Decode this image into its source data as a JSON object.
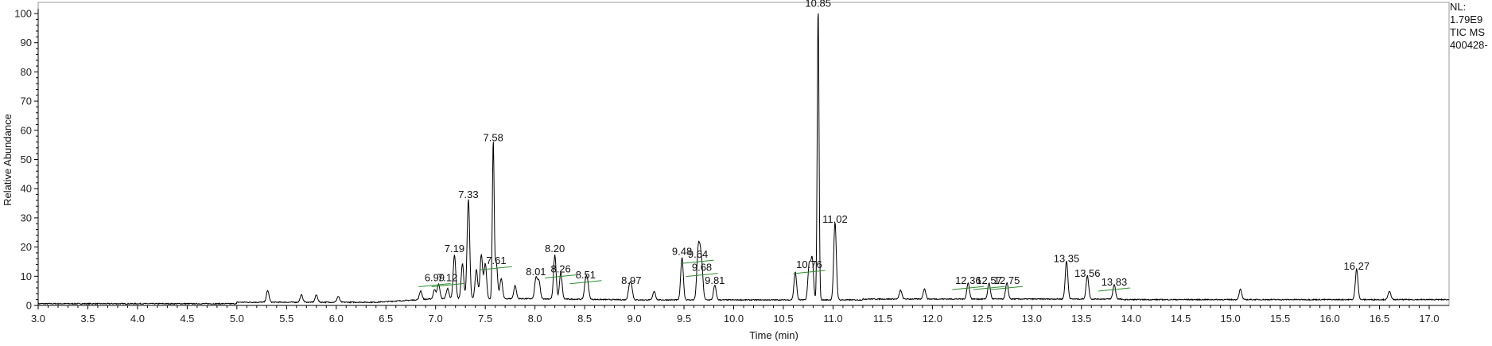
{
  "chart_data": {
    "type": "line",
    "xlabel": "Time (min)",
    "ylabel": "Relative Abundance",
    "xlim": [
      3.0,
      17.2
    ],
    "ylim": [
      0,
      100
    ],
    "x_ticks": [
      "3.0",
      "3.5",
      "4.0",
      "4.5",
      "5.0",
      "5.5",
      "6.0",
      "6.5",
      "7.0",
      "7.5",
      "8.0",
      "8.5",
      "9.0",
      "9.5",
      "10.0",
      "10.5",
      "11.0",
      "11.5",
      "12.0",
      "12.5",
      "13.0",
      "13.5",
      "14.0",
      "14.5",
      "15.0",
      "15.5",
      "16.0",
      "16.5",
      "17.0"
    ],
    "y_ticks": [
      "0",
      "10",
      "20",
      "30",
      "40",
      "50",
      "60",
      "70",
      "80",
      "90",
      "100"
    ],
    "info": [
      "NL:",
      "1.79E9",
      "TIC  MS",
      "400428-"
    ],
    "colors": {
      "trace": "#000000",
      "axis": "#000000",
      "integration_mark": "#2e8b2e"
    },
    "peaks": [
      {
        "rt": 6.99,
        "label": "6.99",
        "height": 3.2,
        "label_y": 7.5,
        "marked": true
      },
      {
        "rt": 7.12,
        "label": "7.12",
        "height": 3.5,
        "label_y": 7.5,
        "marked": true
      },
      {
        "rt": 7.19,
        "label": "7.19",
        "height": 15.0,
        "label_y": 17.5,
        "marked": false
      },
      {
        "rt": 7.33,
        "label": "7.33",
        "height": 34.0,
        "label_y": 36.0,
        "marked": false
      },
      {
        "rt": 7.58,
        "label": "7.58",
        "height": 53.5,
        "label_y": 55.5,
        "marked": false
      },
      {
        "rt": 7.61,
        "label": "7.61",
        "height": 12.5,
        "label_y": 13.3,
        "marked": true
      },
      {
        "rt": 8.01,
        "label": "8.01",
        "height": 7.0,
        "label_y": 9.5,
        "marked": false
      },
      {
        "rt": 8.2,
        "label": "8.20",
        "height": 15.0,
        "label_y": 17.5,
        "marked": false
      },
      {
        "rt": 8.26,
        "label": "8.26",
        "height": 9.0,
        "label_y": 10.5,
        "marked": true
      },
      {
        "rt": 8.51,
        "label": "8.51",
        "height": 6.0,
        "label_y": 8.5,
        "marked": true
      },
      {
        "rt": 8.97,
        "label": "8.97",
        "height": 4.5,
        "label_y": 6.5,
        "marked": false
      },
      {
        "rt": 9.48,
        "label": "9.48",
        "height": 14.5,
        "label_y": 16.5,
        "marked": false
      },
      {
        "rt": 9.64,
        "label": "9.64",
        "height": 14.0,
        "label_y": 15.5,
        "marked": true
      },
      {
        "rt": 9.68,
        "label": "9.68",
        "height": 9.5,
        "label_y": 11.0,
        "marked": true
      },
      {
        "rt": 9.81,
        "label": "9.81",
        "height": 5.0,
        "label_y": 6.5,
        "marked": false
      },
      {
        "rt": 10.76,
        "label": "10.76",
        "height": 12.0,
        "label_y": 12.0,
        "marked": true
      },
      {
        "rt": 10.85,
        "label": "10.85",
        "height": 100.0,
        "label_y": 101.5,
        "marked": false
      },
      {
        "rt": 11.02,
        "label": "11.02",
        "height": 26.5,
        "label_y": 27.5,
        "marked": false
      },
      {
        "rt": 12.36,
        "label": "12.36",
        "height": 5.5,
        "label_y": 6.5,
        "marked": true
      },
      {
        "rt": 12.57,
        "label": "12.57",
        "height": 5.5,
        "label_y": 6.5,
        "marked": true
      },
      {
        "rt": 12.75,
        "label": "12.75",
        "height": 5.5,
        "label_y": 6.5,
        "marked": true
      },
      {
        "rt": 13.35,
        "label": "13.35",
        "height": 13.0,
        "label_y": 14.0,
        "marked": false
      },
      {
        "rt": 13.56,
        "label": "13.56",
        "height": 8.0,
        "label_y": 9.0,
        "marked": false
      },
      {
        "rt": 13.83,
        "label": "13.83",
        "height": 5.0,
        "label_y": 6.0,
        "marked": true
      },
      {
        "rt": 16.27,
        "label": "16.27",
        "height": 10.5,
        "label_y": 11.5,
        "marked": false
      }
    ],
    "minor_peaks": [
      [
        5.31,
        4.0
      ],
      [
        5.65,
        2.5
      ],
      [
        5.8,
        2.5
      ],
      [
        6.02,
        2.0
      ],
      [
        6.85,
        3.0
      ],
      [
        7.03,
        5.0
      ],
      [
        7.27,
        12.0
      ],
      [
        7.41,
        10.0
      ],
      [
        7.46,
        15.0
      ],
      [
        7.5,
        12.0
      ],
      [
        7.66,
        7.0
      ],
      [
        7.8,
        4.5
      ],
      [
        8.04,
        6.0
      ],
      [
        8.53,
        5.0
      ],
      [
        8.95,
        4.0
      ],
      [
        9.2,
        3.0
      ],
      [
        9.66,
        12.0
      ],
      [
        10.62,
        9.5
      ],
      [
        10.79,
        14.0
      ],
      [
        11.68,
        3.0
      ],
      [
        11.92,
        3.5
      ],
      [
        15.1,
        3.5
      ],
      [
        16.6,
        3.0
      ]
    ]
  }
}
